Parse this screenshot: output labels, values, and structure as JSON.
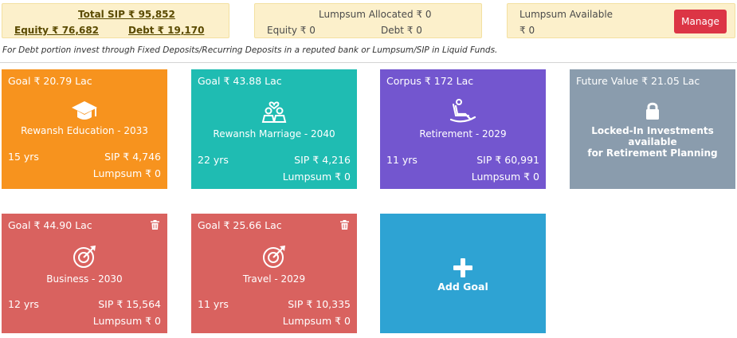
{
  "summary": {
    "total_sip": "Total SIP ₹ 95,852",
    "equity": "Equity ₹ 76,682",
    "debt": "Debt ₹ 19,170",
    "lumpsum_allocated": "Lumpsum Allocated ₹ 0",
    "alloc_equity": "Equity ₹ 0",
    "alloc_debt": "Debt ₹ 0",
    "lumpsum_available_label": "Lumpsum Available",
    "lumpsum_available_value": "₹ 0",
    "manage_label": "Manage"
  },
  "note": "For Debt portion invest through Fixed Deposits/Recurring Deposits in a reputed bank or Lumpsum/SIP in Liquid Funds.",
  "cards": {
    "education": {
      "head": "Goal ₹ 20.79 Lac",
      "name": "Rewansh Education - 2033",
      "yrs": "15 yrs",
      "sip": "SIP ₹ 4,746",
      "lumpsum": "Lumpsum ₹ 0",
      "icon": "graduation-cap-icon",
      "color": "#f7931e"
    },
    "marriage": {
      "head": "Goal ₹ 43.88 Lac",
      "name": "Rewansh Marriage - 2040",
      "yrs": "22 yrs",
      "sip": "SIP ₹ 4,216",
      "lumpsum": "Lumpsum ₹ 0",
      "icon": "couple-icon",
      "color": "#1fbcb2"
    },
    "retirement": {
      "head": "Corpus ₹ 172 Lac",
      "name": "Retirement - 2029",
      "yrs": "11 yrs",
      "sip": "SIP ₹ 60,991",
      "lumpsum": "Lumpsum ₹ 0",
      "icon": "rocking-chair-icon",
      "color": "#7356cf"
    },
    "locked": {
      "head": "Future Value ₹ 21.05 Lac",
      "text1": "Locked-In Investments available",
      "text2": "for Retirement Planning",
      "icon": "lock-icon",
      "color": "#8a9cad"
    },
    "business": {
      "head": "Goal ₹ 44.90 Lac",
      "name": "Business - 2030",
      "yrs": "12 yrs",
      "sip": "SIP ₹ 15,564",
      "lumpsum": "Lumpsum ₹ 0",
      "icon": "target-icon",
      "color": "#d9625f"
    },
    "travel": {
      "head": "Goal ₹ 25.66 Lac",
      "name": "Travel - 2029",
      "yrs": "11 yrs",
      "sip": "SIP ₹ 10,335",
      "lumpsum": "Lumpsum ₹ 0",
      "icon": "target-icon",
      "color": "#d9625f"
    },
    "add": {
      "label": "Add Goal",
      "icon": "plus-icon",
      "color": "#2ea3d3"
    }
  }
}
